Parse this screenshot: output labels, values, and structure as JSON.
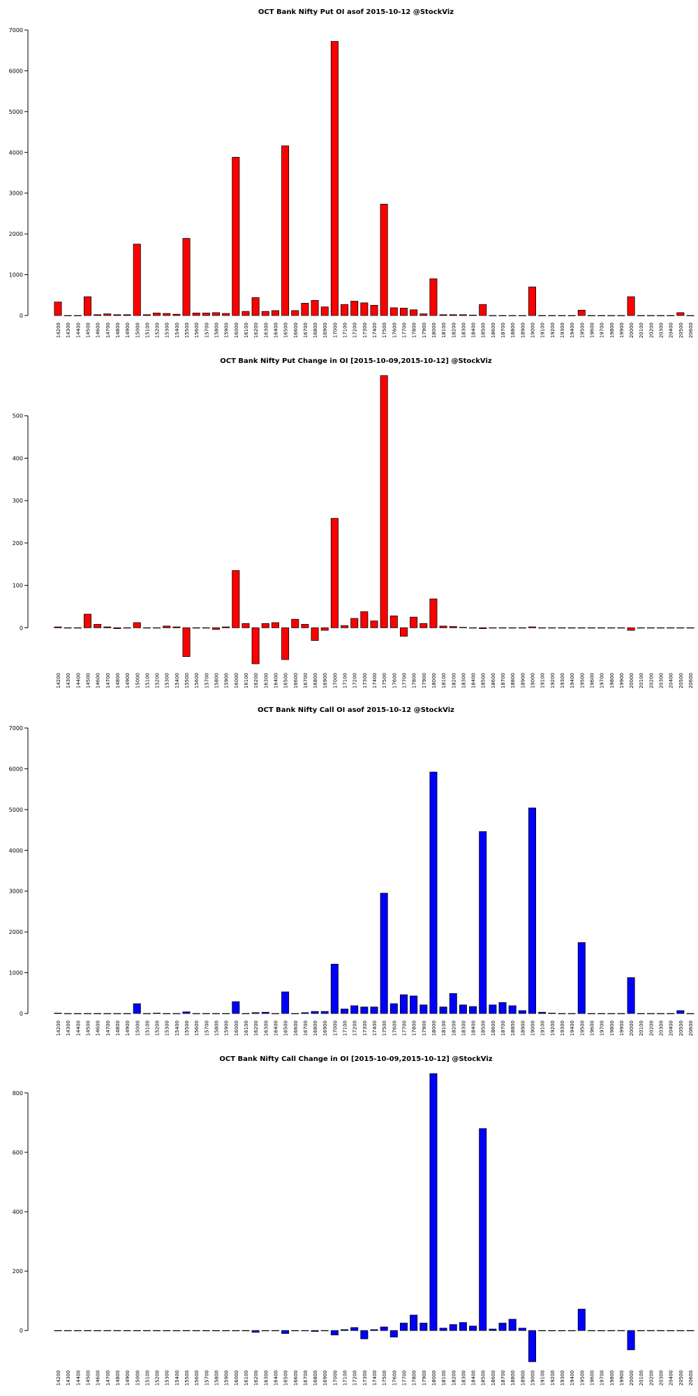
{
  "chart_data": [
    {
      "type": "bar",
      "title": "OCT Bank Nifty Put OI asof 2015-10-12 @StockViz",
      "color": "#ff0000",
      "categories": [
        "14200",
        "14300",
        "14400",
        "14500",
        "14600",
        "14700",
        "14800",
        "14900",
        "15000",
        "15100",
        "15200",
        "15300",
        "15400",
        "15500",
        "15600",
        "15700",
        "15800",
        "15900",
        "16000",
        "16100",
        "16200",
        "16300",
        "16400",
        "16500",
        "16600",
        "16700",
        "16800",
        "16900",
        "17000",
        "17100",
        "17200",
        "17300",
        "17400",
        "17500",
        "17600",
        "17700",
        "17800",
        "17900",
        "18000",
        "18100",
        "18200",
        "18300",
        "18400",
        "18500",
        "18600",
        "18700",
        "18800",
        "18900",
        "19000",
        "19100",
        "19200",
        "19300",
        "19400",
        "19500",
        "19600",
        "19700",
        "19800",
        "19900",
        "20000",
        "20100",
        "20200",
        "20300",
        "20400",
        "20500",
        "20600"
      ],
      "values": [
        330,
        0,
        0,
        460,
        20,
        40,
        20,
        20,
        1750,
        20,
        60,
        50,
        30,
        1890,
        60,
        60,
        70,
        50,
        3880,
        100,
        440,
        100,
        120,
        4160,
        120,
        300,
        370,
        210,
        6720,
        270,
        350,
        310,
        250,
        2730,
        190,
        180,
        140,
        40,
        900,
        20,
        20,
        20,
        10,
        270,
        0,
        0,
        0,
        0,
        700,
        0,
        0,
        0,
        0,
        130,
        0,
        0,
        0,
        0,
        460,
        0,
        0,
        0,
        0,
        70,
        0
      ],
      "ylim": [
        0,
        7000
      ],
      "yticks": [
        0,
        1000,
        2000,
        3000,
        4000,
        5000,
        6000,
        7000
      ]
    },
    {
      "type": "bar",
      "title": "OCT Bank Nifty Put Change in OI [2015-10-09,2015-10-12] @StockViz",
      "color": "#ff0000",
      "categories": [
        "14200",
        "14300",
        "14400",
        "14500",
        "14600",
        "14700",
        "14800",
        "14900",
        "15000",
        "15100",
        "15200",
        "15300",
        "15400",
        "15500",
        "15600",
        "15700",
        "15800",
        "15900",
        "16000",
        "16100",
        "16200",
        "16300",
        "16400",
        "16500",
        "16600",
        "16700",
        "16800",
        "16900",
        "17000",
        "17100",
        "17200",
        "17300",
        "17400",
        "17500",
        "17600",
        "17700",
        "17800",
        "17900",
        "18000",
        "18100",
        "18200",
        "18300",
        "18400",
        "18500",
        "18600",
        "18700",
        "18800",
        "18900",
        "19000",
        "19100",
        "19200",
        "19300",
        "19400",
        "19500",
        "19600",
        "19700",
        "19800",
        "19900",
        "20000",
        "20100",
        "20200",
        "20300",
        "20400",
        "20500",
        "20600"
      ],
      "values": [
        2,
        0,
        0,
        32,
        8,
        2,
        -2,
        0,
        12,
        0,
        0,
        4,
        2,
        -68,
        0,
        0,
        -4,
        2,
        135,
        10,
        -85,
        10,
        12,
        -75,
        20,
        8,
        -30,
        -6,
        258,
        5,
        22,
        38,
        16,
        595,
        28,
        -20,
        25,
        10,
        68,
        4,
        3,
        1,
        0,
        -2,
        0,
        0,
        0,
        0,
        2,
        0,
        0,
        0,
        0,
        0,
        0,
        0,
        0,
        0,
        -6,
        0,
        0,
        0,
        0,
        0,
        0
      ],
      "ylim": [
        -90,
        600
      ],
      "yticks": [
        0,
        100,
        200,
        300,
        400,
        500
      ]
    },
    {
      "type": "bar",
      "title": "OCT Bank Nifty Call OI asof 2015-10-12 @StockViz",
      "color": "#0000ff",
      "categories": [
        "14200",
        "14300",
        "14400",
        "14500",
        "14600",
        "14700",
        "14800",
        "14900",
        "15000",
        "15100",
        "15200",
        "15300",
        "15400",
        "15500",
        "15600",
        "15700",
        "15800",
        "15900",
        "16000",
        "16100",
        "16200",
        "16300",
        "16400",
        "16500",
        "16600",
        "16700",
        "16800",
        "16900",
        "17000",
        "17100",
        "17200",
        "17300",
        "17400",
        "17500",
        "17600",
        "17700",
        "17800",
        "17900",
        "18000",
        "18100",
        "18200",
        "18300",
        "18400",
        "18500",
        "18600",
        "18700",
        "18800",
        "18900",
        "19000",
        "19100",
        "19200",
        "19300",
        "19400",
        "19500",
        "19600",
        "19700",
        "19800",
        "19900",
        "20000",
        "20100",
        "20200",
        "20300",
        "20400",
        "20500",
        "20600"
      ],
      "values": [
        10,
        0,
        0,
        0,
        0,
        0,
        0,
        0,
        240,
        0,
        10,
        0,
        0,
        40,
        0,
        0,
        0,
        0,
        290,
        0,
        20,
        30,
        0,
        530,
        0,
        20,
        50,
        50,
        1210,
        110,
        190,
        160,
        160,
        2950,
        240,
        460,
        430,
        210,
        5920,
        160,
        490,
        210,
        170,
        4460,
        210,
        270,
        190,
        70,
        5040,
        30,
        10,
        0,
        0,
        1740,
        0,
        0,
        0,
        0,
        880,
        0,
        0,
        0,
        0,
        70,
        0
      ],
      "ylim": [
        0,
        7000
      ],
      "yticks": [
        0,
        1000,
        2000,
        3000,
        4000,
        5000,
        6000,
        7000
      ]
    },
    {
      "type": "bar",
      "title": "OCT Bank Nifty Call Change in OI [2015-10-09,2015-10-12] @StockViz",
      "color": "#0000ff",
      "categories": [
        "14200",
        "14300",
        "14400",
        "14500",
        "14600",
        "14700",
        "14800",
        "14900",
        "15000",
        "15100",
        "15200",
        "15300",
        "15400",
        "15500",
        "15600",
        "15700",
        "15800",
        "15900",
        "16000",
        "16100",
        "16200",
        "16300",
        "16400",
        "16500",
        "16600",
        "16700",
        "16800",
        "16900",
        "17000",
        "17100",
        "17200",
        "17300",
        "17400",
        "17500",
        "17600",
        "17700",
        "17800",
        "17900",
        "18000",
        "18100",
        "18200",
        "18300",
        "18400",
        "18500",
        "18600",
        "18700",
        "18800",
        "18900",
        "19000",
        "19100",
        "19200",
        "19300",
        "19400",
        "19500",
        "19600",
        "19700",
        "19800",
        "19900",
        "20000",
        "20100",
        "20200",
        "20300",
        "20400",
        "20500",
        "20600"
      ],
      "values": [
        0,
        0,
        0,
        0,
        0,
        0,
        0,
        0,
        0,
        0,
        0,
        0,
        0,
        0,
        0,
        0,
        0,
        0,
        0,
        0,
        -6,
        0,
        0,
        -10,
        0,
        0,
        -3,
        0,
        -15,
        3,
        10,
        -28,
        3,
        12,
        -22,
        25,
        52,
        25,
        865,
        8,
        20,
        27,
        15,
        680,
        5,
        25,
        38,
        8,
        -105,
        0,
        0,
        0,
        0,
        72,
        0,
        0,
        0,
        0,
        -65,
        0,
        0,
        0,
        0,
        0,
        0
      ],
      "ylim": [
        -110,
        870
      ],
      "yticks": [
        0,
        200,
        400,
        600,
        800
      ]
    }
  ]
}
